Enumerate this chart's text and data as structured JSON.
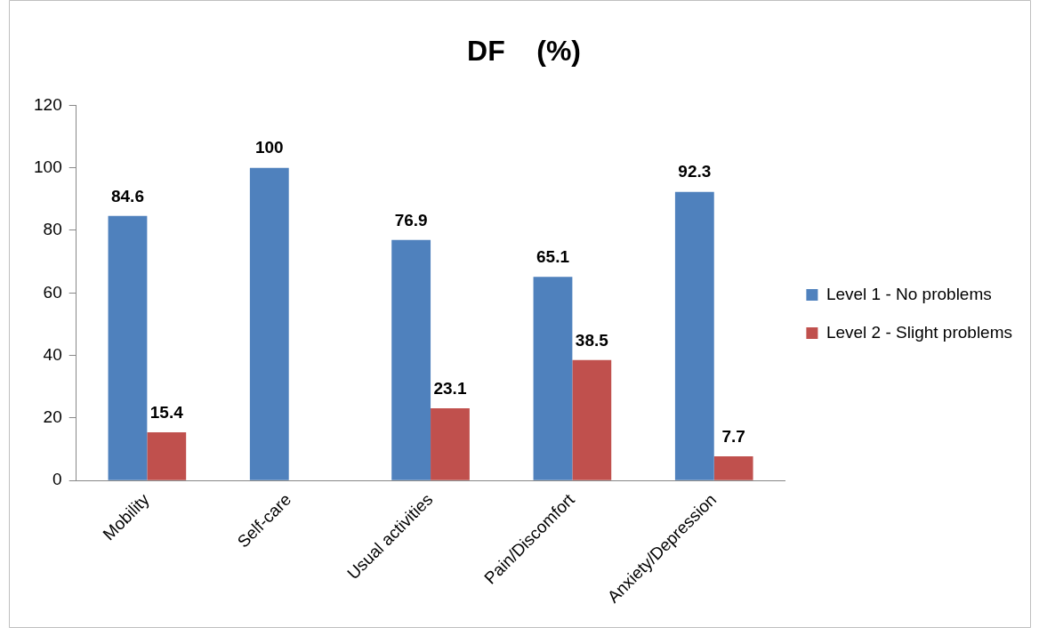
{
  "chart_data": {
    "type": "bar",
    "title": "DF    (%)",
    "categories": [
      "Mobility",
      "Self-care",
      "Usual activities",
      "Pain/Discomfort",
      "Anxiety/Depression"
    ],
    "series": [
      {
        "name": "Level 1 - No problems",
        "color": "#4f81bd",
        "values": [
          84.6,
          100,
          76.9,
          65.1,
          92.3
        ]
      },
      {
        "name": "Level 2 - Slight problems",
        "color": "#c0504d",
        "values": [
          15.4,
          null,
          23.1,
          38.5,
          7.7
        ]
      }
    ],
    "ylim": [
      0,
      120
    ],
    "yticks": [
      0,
      20,
      40,
      60,
      80,
      100,
      120
    ],
    "grid": false,
    "legend": "right",
    "data_labels": true
  }
}
